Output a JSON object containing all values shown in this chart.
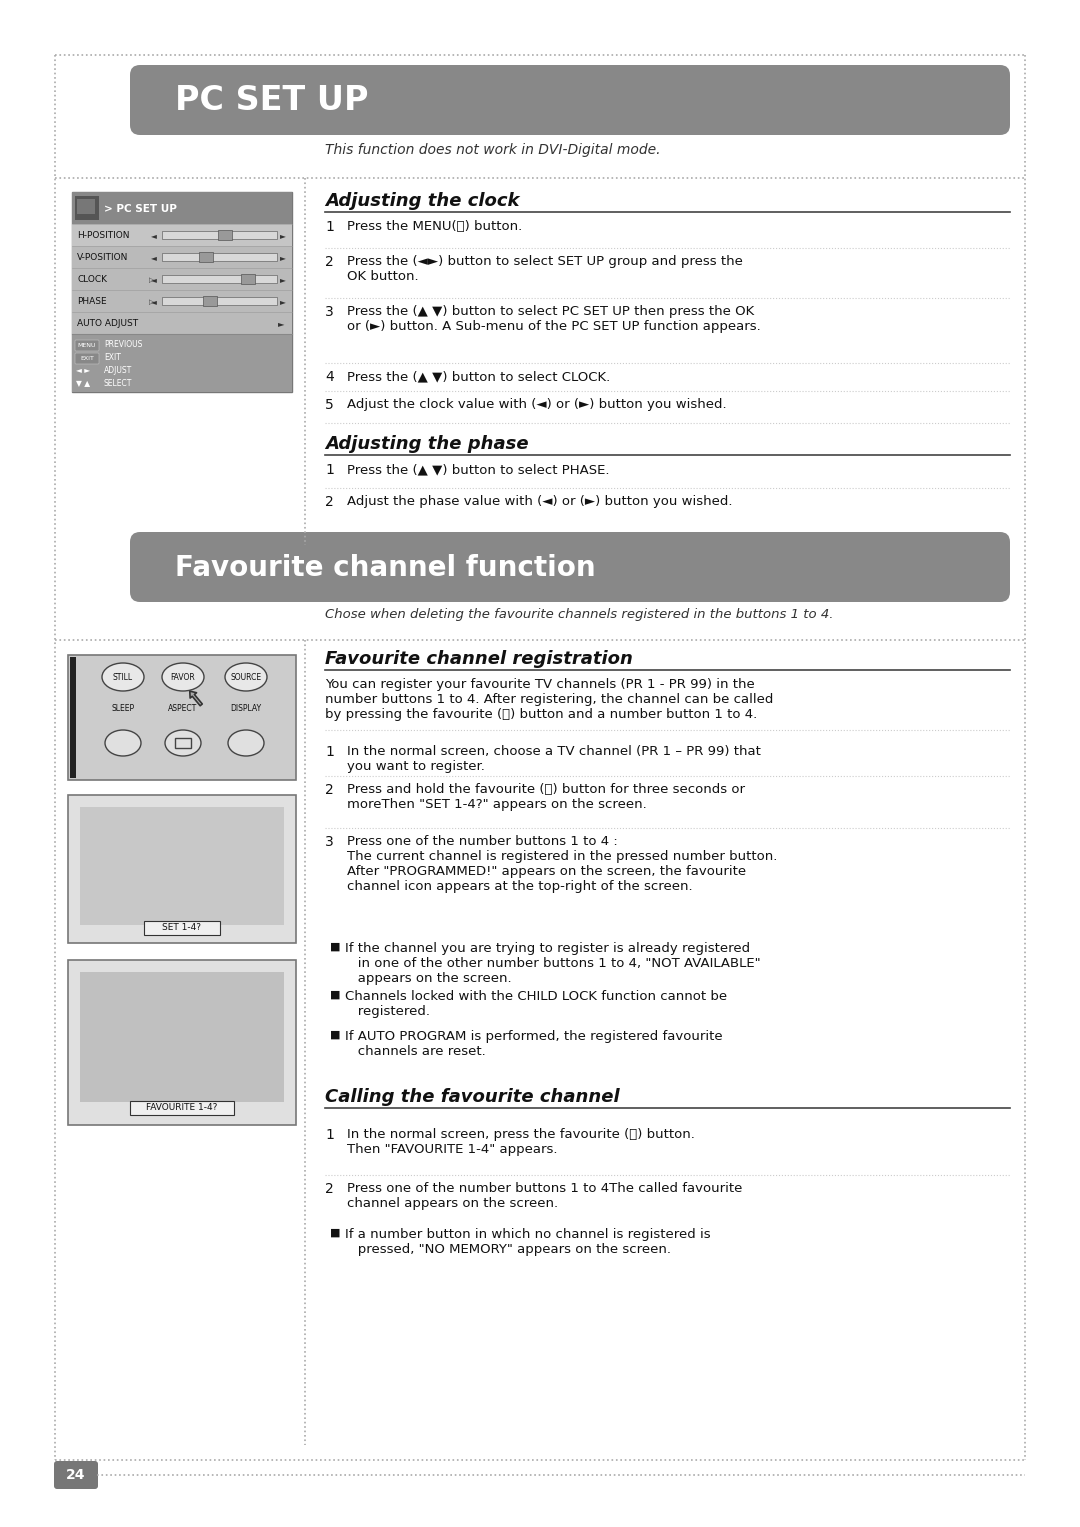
{
  "bg_color": "#ffffff",
  "header1_text": "PC SET UP",
  "header1_bg": "#888888",
  "header1_text_color": "#ffffff",
  "header2_text": "Favourite channel function",
  "header2_bg": "#888888",
  "header2_text_color": "#ffffff",
  "italic_note1": "This function does not work in DVI-Digital mode.",
  "italic_note2": "Chose when deleting the favourite channels registered in the buttons 1 to 4.",
  "section1_title": "Adjusting the clock",
  "section2_title": "Adjusting the phase",
  "section3_title": "Favourite channel registration",
  "section4_title": "Calling the favourite channel",
  "clock_steps": [
    "Press the MENU(Ⓜ) button.",
    "Press the (◄►) button to select SET UP group and press the\nOK button.",
    "Press the (▲ ▼) button to select PC SET UP then press the OK\nor (►) button. A Sub-menu of the PC SET UP function appears.",
    "Press the (▲ ▼) button to select CLOCK.",
    "Adjust the clock value with (◄) or (►) button you wished."
  ],
  "phase_steps": [
    "Press the (▲ ▼) button to select PHASE.",
    "Adjust the phase value with (◄) or (►) button you wished."
  ],
  "fav_intro": "You can register your favourite TV channels (PR 1 - PR 99) in the\nnumber buttons 1 to 4. After registering, the channel can be called\nby pressing the favourite (Ⓕ) button and a number button 1 to 4.",
  "fav_steps": [
    "In the normal screen, choose a TV channel (PR 1 – PR 99) that\nyou want to register.",
    "Press and hold the favourite (Ⓕ) button for three seconds or\nmoreThen \"SET 1-4?\" appears on the screen.",
    "Press one of the number buttons 1 to 4 :\nThe current channel is registered in the pressed number button.\nAfter \"PROGRAMMED!\" appears on the screen, the favourite\nchannel icon appears at the top-right of the screen."
  ],
  "fav_bullets": [
    "If the channel you are trying to register is already registered\n   in one of the other number buttons 1 to 4, \"NOT AVAILABLE\"\n   appears on the screen.",
    "Channels locked with the CHILD LOCK function cannot be\n   registered.",
    "If AUTO PROGRAM is performed, the registered favourite\n   channels are reset."
  ],
  "call_steps": [
    "In the normal screen, press the favourite (Ⓕ) button.\nThen \"FAVOURITE 1-4\" appears.",
    "Press one of the number buttons 1 to 4The called favourite\nchannel appears on the screen."
  ],
  "call_bullet": "If a number button in which no channel is registered is\n   pressed, \"NO MEMORY\" appears on the screen.",
  "page_number": "24",
  "page_num_bg": "#777777",
  "page_num_color": "#ffffff",
  "dot_color": "#aaaaaa",
  "sep_color": "#444444",
  "text_color": "#1a1a1a",
  "menu_items": [
    "H-POSITION",
    "V-POSITION",
    "CLOCK",
    "PHASE",
    "AUTO ADJUST"
  ]
}
